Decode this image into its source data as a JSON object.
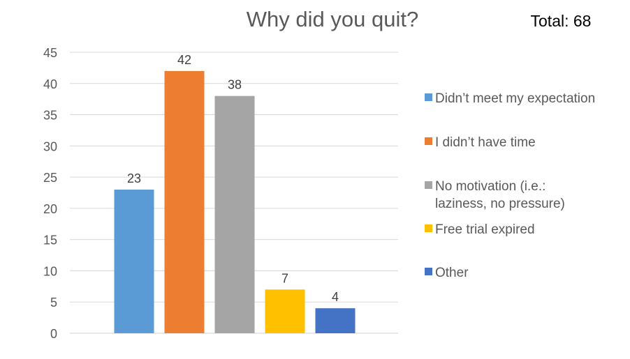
{
  "total_label": "Total: 68",
  "chart_data": {
    "type": "bar",
    "title": "Why did you quit?",
    "xlabel": "",
    "ylabel": "",
    "ylim": [
      0,
      45
    ],
    "y_ticks": [
      0,
      5,
      10,
      15,
      20,
      25,
      30,
      35,
      40,
      45
    ],
    "grid": true,
    "legend_position": "right",
    "data_labels": true,
    "categories": [
      "Didn’t meet my expectation",
      "I didn’t have time",
      "No motivation (i.e.: laziness, no pressure)",
      "Free trial expired",
      "Other"
    ],
    "legend_lines": [
      [
        "Didn’t meet my expectation"
      ],
      [
        "I didn’t have time"
      ],
      [
        "No motivation (i.e.:",
        "laziness, no pressure)"
      ],
      [
        "Free trial expired"
      ],
      [
        "Other"
      ]
    ],
    "values": [
      23,
      42,
      38,
      7,
      4
    ],
    "colors": [
      "#5B9BD5",
      "#ED7D31",
      "#A5A5A5",
      "#FFC000",
      "#4472C4"
    ]
  }
}
